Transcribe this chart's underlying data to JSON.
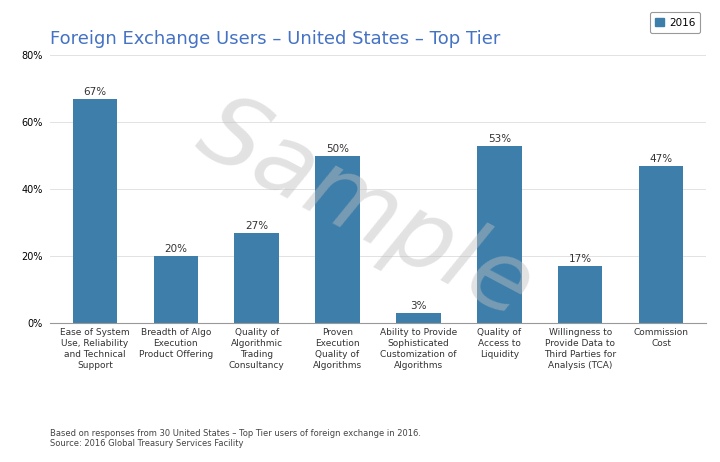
{
  "title": "Foreign Exchange Users – United States – Top Tier",
  "categories": [
    "Ease of System\nUse, Reliability\nand Technical\nSupport",
    "Breadth of Algo\nExecution\nProduct Offering",
    "Quality of\nAlgorithmic\nTrading\nConsultancy",
    "Proven\nExecution\nQuality of\nAlgorithms",
    "Ability to Provide\nSophisticated\nCustomization of\nAlgorithms",
    "Quality of\nAccess to\nLiquidity",
    "Willingness to\nProvide Data to\nThird Parties for\nAnalysis (TCA)",
    "Commission\nCost"
  ],
  "values": [
    67,
    20,
    27,
    50,
    3,
    53,
    17,
    47
  ],
  "bar_color": "#3D7EAA",
  "ylim": [
    0,
    80
  ],
  "yticks": [
    0,
    20,
    40,
    60,
    80
  ],
  "legend_label": "2016",
  "legend_color": "#3D7EAA",
  "footnote_line1": "Based on responses from 30 United States – Top Tier users of foreign exchange in 2016.",
  "footnote_line2": "Source: 2016 Global Treasury Services Facility",
  "background_color": "#FFFFFF",
  "title_fontsize": 13,
  "title_color": "#4472C4",
  "bar_label_fontsize": 7.5,
  "tick_label_fontsize": 6.5,
  "ytick_fontsize": 7,
  "footnote_fontsize": 6,
  "legend_fontsize": 7.5,
  "sample_text": "Sample",
  "sample_color": "#C0C0C0",
  "sample_alpha": 0.45
}
